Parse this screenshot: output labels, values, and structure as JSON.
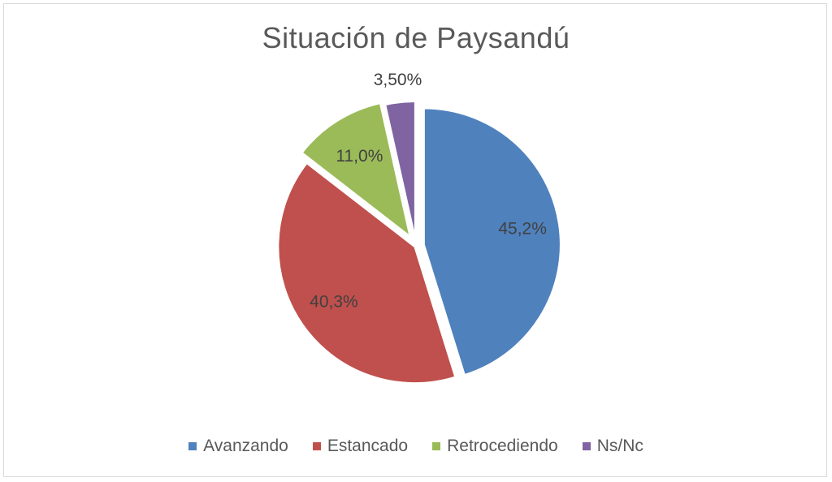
{
  "chart_data": {
    "type": "pie",
    "title": "Situación de Paysandú",
    "slices": [
      {
        "name": "Avanzando",
        "value": 45.2,
        "label": "45,2%",
        "color": "#4f81bd"
      },
      {
        "name": "Estancado",
        "value": 40.3,
        "label": "40,3%",
        "color": "#c0504d"
      },
      {
        "name": "Retrocediendo",
        "value": 11.0,
        "label": "11,0%",
        "color": "#9bbb59"
      },
      {
        "name": "Ns/Nc",
        "value": 3.5,
        "label": "3,50%",
        "color": "#8064a2"
      }
    ],
    "legend_position": "bottom"
  }
}
